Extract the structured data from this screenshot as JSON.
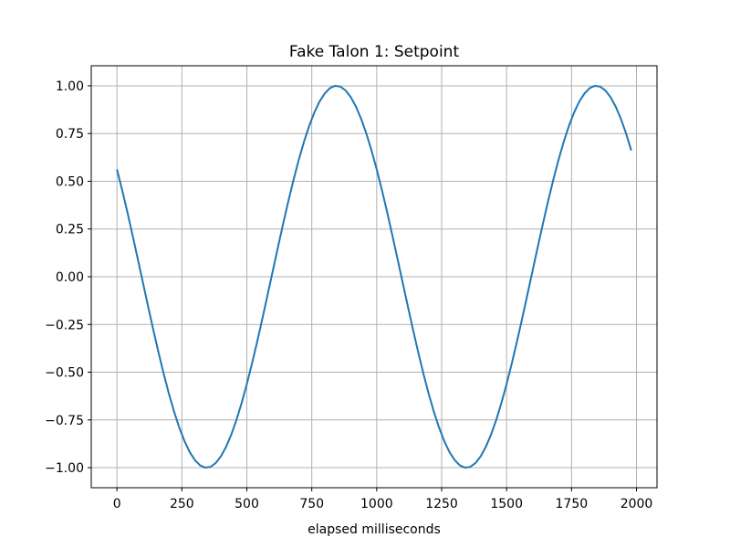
{
  "chart_data": {
    "type": "line",
    "title": "Fake Talon 1: Setpoint",
    "x_label": "elapsed milliseconds",
    "x": [
      0,
      20,
      40,
      60,
      80,
      100,
      120,
      140,
      160,
      180,
      200,
      220,
      240,
      260,
      280,
      300,
      320,
      340,
      360,
      380,
      400,
      420,
      440,
      460,
      480,
      500,
      520,
      540,
      560,
      580,
      600,
      620,
      640,
      660,
      680,
      700,
      720,
      740,
      760,
      780,
      800,
      820,
      840,
      860,
      880,
      900,
      920,
      940,
      960,
      980,
      1000,
      1020,
      1040,
      1060,
      1080,
      1100,
      1120,
      1140,
      1160,
      1180,
      1200,
      1220,
      1240,
      1260,
      1280,
      1300,
      1320,
      1340,
      1360,
      1380,
      1400,
      1420,
      1440,
      1460,
      1480,
      1500,
      1520,
      1540,
      1560,
      1580,
      1600,
      1620,
      1640,
      1660,
      1680,
      1700,
      1720,
      1740,
      1760,
      1780,
      1800,
      1820,
      1840,
      1860,
      1880,
      1900,
      1920,
      1940,
      1960,
      1980
    ],
    "series": [
      {
        "color": "#1f77b4",
        "values": [
          0.562,
          0.454,
          0.339,
          0.218,
          0.094,
          -0.031,
          -0.156,
          -0.279,
          -0.397,
          -0.509,
          -0.613,
          -0.707,
          -0.79,
          -0.861,
          -0.918,
          -0.96,
          -0.988,
          -1.0,
          -0.996,
          -0.976,
          -0.941,
          -0.891,
          -0.827,
          -0.75,
          -0.661,
          -0.562,
          -0.454,
          -0.339,
          -0.218,
          -0.094,
          0.031,
          0.156,
          0.279,
          0.397,
          0.509,
          0.613,
          0.707,
          0.79,
          0.861,
          0.918,
          0.96,
          0.988,
          1.0,
          0.996,
          0.976,
          0.941,
          0.891,
          0.827,
          0.75,
          0.661,
          0.562,
          0.454,
          0.339,
          0.218,
          0.094,
          -0.031,
          -0.156,
          -0.279,
          -0.397,
          -0.509,
          -0.613,
          -0.707,
          -0.79,
          -0.861,
          -0.918,
          -0.96,
          -0.988,
          -1.0,
          -0.996,
          -0.976,
          -0.941,
          -0.891,
          -0.827,
          -0.75,
          -0.661,
          -0.562,
          -0.454,
          -0.339,
          -0.218,
          -0.094,
          0.031,
          0.156,
          0.279,
          0.397,
          0.509,
          0.613,
          0.707,
          0.79,
          0.861,
          0.918,
          0.96,
          0.988,
          1.0,
          0.996,
          0.976,
          0.941,
          0.891,
          0.827,
          0.75,
          0.661
        ]
      }
    ],
    "xlim": [
      -99,
      2079
    ],
    "xticks": [
      0,
      250,
      500,
      750,
      1000,
      1250,
      1500,
      1750,
      2000
    ],
    "ylim": [
      -1.105,
      1.105
    ],
    "yticks": [
      {
        "value": -1,
        "label": "−1.00"
      },
      {
        "value": -0.75,
        "label": "−0.75"
      },
      {
        "value": -0.5,
        "label": "−0.50"
      },
      {
        "value": -0.25,
        "label": "−0.25"
      },
      {
        "value": 0,
        "label": "0.00"
      },
      {
        "value": 0.25,
        "label": "0.25"
      },
      {
        "value": 0.5,
        "label": "0.50"
      },
      {
        "value": 0.75,
        "label": "0.75"
      },
      {
        "value": 1,
        "label": "1.00"
      }
    ],
    "grid": true
  }
}
